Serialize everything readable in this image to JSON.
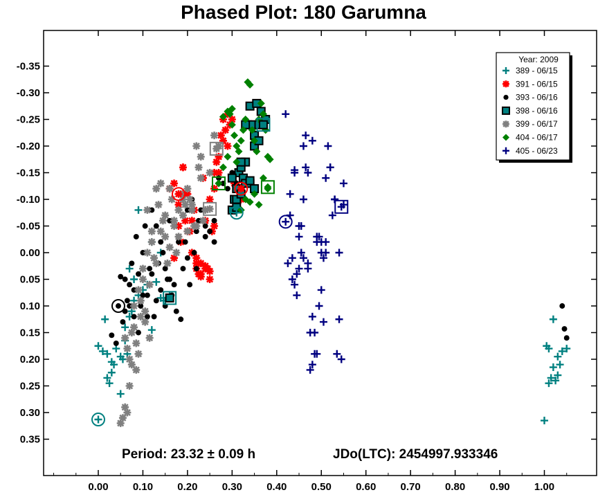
{
  "chart_data": {
    "type": "scatter",
    "title": "Phased Plot: 180 Garumna",
    "xlabel": "",
    "ylabel": "",
    "xlim": [
      -0.12,
      1.12
    ],
    "ylim": [
      0.42,
      -0.42
    ],
    "y_inverted": true,
    "x_ticks": [
      0.0,
      0.1,
      0.2,
      0.3,
      0.4,
      0.5,
      0.6,
      0.7,
      0.8,
      0.9,
      1.0
    ],
    "x_tick_labels": [
      "0.00",
      "0.10",
      "0.20",
      "0.30",
      "0.40",
      "0.50",
      "0.60",
      "0.70",
      "0.80",
      "0.90",
      "1.00"
    ],
    "y_ticks": [
      -0.35,
      -0.3,
      -0.25,
      -0.2,
      -0.15,
      -0.1,
      -0.05,
      0.0,
      0.05,
      0.1,
      0.15,
      0.2,
      0.25,
      0.3,
      0.35
    ],
    "y_tick_labels": [
      "-0.35",
      "-0.30",
      "-0.25",
      "-0.20",
      "-0.15",
      "-0.10",
      "-0.05",
      "0.00",
      "0.05",
      "0.10",
      "0.15",
      "0.20",
      "0.25",
      "0.30",
      "0.35"
    ],
    "grid": false,
    "legend": {
      "title": "Year: 2009",
      "placement": "top-right"
    },
    "annotations": {
      "period": "Period: 23.32 ± 0.09 h",
      "epoch": "JDo(LTC): 2454997.933346"
    },
    "series": [
      {
        "name": "389 - 06/15",
        "marker": "plus",
        "color": "#008080",
        "x": [
          0.0,
          0.01,
          0.02,
          0.02,
          0.03,
          0.035,
          0.04,
          0.05,
          0.055,
          0.06,
          0.06,
          0.065,
          0.07,
          0.075,
          0.08,
          0.08,
          0.09,
          0.1,
          0.11,
          0.12,
          0.13,
          0.14,
          0.15,
          0.16,
          0.015,
          0.025,
          0.03,
          0.05,
          0.07,
          0.09,
          0.12,
          0.14,
          1.0,
          1.01,
          1.02,
          1.03,
          1.04,
          1.005,
          1.015,
          1.025,
          1.035,
          1.05,
          1.02,
          1.03,
          1.01
        ],
        "y": [
          0.175,
          0.185,
          0.19,
          0.235,
          0.205,
          0.21,
          0.18,
          0.265,
          0.2,
          0.165,
          0.14,
          0.19,
          0.12,
          0.11,
          0.09,
          0.05,
          0.08,
          0.07,
          0.06,
          0.145,
          0.055,
          0.085,
          0.09,
          0.08,
          0.125,
          0.245,
          0.225,
          0.195,
          0.03,
          -0.08,
          -0.02,
          0.0,
          0.315,
          0.245,
          0.215,
          0.195,
          0.185,
          0.175,
          0.235,
          0.24,
          0.21,
          0.18,
          0.125,
          0.23,
          0.18
        ]
      },
      {
        "name": "391 - 06/15",
        "marker": "star",
        "color": "#ff0000",
        "x": [
          0.16,
          0.17,
          0.18,
          0.185,
          0.19,
          0.195,
          0.2,
          0.205,
          0.21,
          0.215,
          0.22,
          0.225,
          0.23,
          0.235,
          0.24,
          0.245,
          0.25,
          0.255,
          0.26,
          0.265,
          0.27,
          0.275,
          0.28,
          0.285,
          0.29,
          0.295,
          0.3,
          0.305,
          0.31,
          0.32,
          0.19,
          0.2,
          0.21,
          0.22,
          0.23,
          0.24,
          0.25,
          0.26,
          0.27,
          0.28,
          0.29,
          0.3,
          0.18,
          0.17,
          0.19,
          0.25,
          0.24,
          0.23,
          0.26,
          0.22
        ],
        "y": [
          -0.12,
          -0.13,
          -0.09,
          -0.02,
          -0.16,
          -0.06,
          -0.11,
          -0.04,
          0.0,
          -0.08,
          0.03,
          0.04,
          0.02,
          -0.14,
          -0.06,
          0.03,
          -0.1,
          -0.04,
          -0.15,
          -0.17,
          -0.18,
          -0.22,
          -0.25,
          -0.23,
          -0.26,
          -0.24,
          -0.14,
          -0.13,
          -0.12,
          -0.1,
          -0.16,
          -0.04,
          -0.06,
          0.02,
          0.04,
          0.03,
          0.05,
          -0.12,
          -0.15,
          -0.21,
          -0.2,
          -0.25,
          -0.05,
          0.01,
          -0.11,
          0.035,
          0.025,
          0.045,
          -0.05,
          0.01
        ]
      },
      {
        "name": "393 - 06/16",
        "marker": "circle",
        "color": "#000000",
        "x": [
          0.03,
          0.04,
          0.05,
          0.055,
          0.06,
          0.065,
          0.07,
          0.075,
          0.08,
          0.085,
          0.09,
          0.095,
          0.1,
          0.105,
          0.11,
          0.115,
          0.12,
          0.125,
          0.13,
          0.135,
          0.14,
          0.145,
          0.15,
          0.155,
          0.16,
          0.165,
          0.17,
          0.175,
          0.18,
          0.185,
          0.19,
          0.195,
          0.2,
          0.205,
          0.21,
          0.215,
          0.22,
          0.225,
          0.23,
          0.24,
          0.25,
          0.26,
          0.27,
          0.28,
          0.29,
          0.3,
          0.31,
          0.06,
          0.08,
          0.1,
          0.12,
          0.14,
          0.16,
          0.18,
          0.2,
          0.22,
          0.24,
          0.26,
          0.07,
          0.09,
          0.11,
          0.13,
          0.15,
          1.04,
          1.045,
          1.05
        ],
        "y": [
          0.155,
          0.17,
          0.045,
          0.13,
          0.11,
          0.09,
          0.06,
          0.02,
          0.07,
          -0.03,
          0.04,
          0.1,
          0.0,
          -0.05,
          0.08,
          0.03,
          -0.08,
          0.12,
          -0.05,
          0.02,
          -0.02,
          0.0,
          0.1,
          0.05,
          -0.06,
          0.08,
          0.06,
          0.11,
          -0.03,
          0.125,
          0.03,
          -0.02,
          0.01,
          0.06,
          -0.1,
          0.0,
          -0.04,
          -0.06,
          -0.08,
          -0.03,
          -0.04,
          -0.06,
          -0.14,
          -0.13,
          -0.12,
          -0.15,
          -0.13,
          0.05,
          0.12,
          0.08,
          0.04,
          0.07,
          0.05,
          -0.02,
          -0.08,
          0.03,
          -0.05,
          -0.02,
          0.1,
          0.15,
          0.12,
          0.09,
          0.03,
          0.1,
          0.143,
          0.16
        ]
      },
      {
        "name": "398 - 06/16",
        "marker": "square",
        "color": "#008080",
        "x": [
          0.3,
          0.305,
          0.31,
          0.315,
          0.32,
          0.325,
          0.33,
          0.335,
          0.34,
          0.345,
          0.35,
          0.355,
          0.36,
          0.365,
          0.37,
          0.375,
          0.31,
          0.32,
          0.33,
          0.34,
          0.35,
          0.36,
          0.33,
          0.34,
          0.35,
          0.3,
          0.31,
          0.32
        ],
        "y": [
          -0.08,
          -0.1,
          -0.12,
          -0.15,
          -0.16,
          -0.14,
          -0.17,
          -0.24,
          -0.275,
          -0.24,
          -0.22,
          -0.28,
          -0.24,
          -0.265,
          -0.24,
          -0.25,
          -0.1,
          -0.11,
          -0.13,
          -0.13,
          -0.2,
          -0.21,
          -0.24,
          -0.135,
          -0.12,
          -0.14,
          -0.085,
          -0.17
        ]
      },
      {
        "name": "399 - 06/17",
        "marker": "star",
        "color": "#808080",
        "x": [
          0.05,
          0.055,
          0.06,
          0.065,
          0.07,
          0.075,
          0.08,
          0.085,
          0.09,
          0.095,
          0.1,
          0.105,
          0.11,
          0.115,
          0.12,
          0.125,
          0.13,
          0.135,
          0.14,
          0.145,
          0.15,
          0.155,
          0.16,
          0.165,
          0.17,
          0.175,
          0.18,
          0.185,
          0.19,
          0.195,
          0.2,
          0.205,
          0.21,
          0.215,
          0.22,
          0.225,
          0.23,
          0.235,
          0.24,
          0.25,
          0.26,
          0.27,
          0.06,
          0.07,
          0.08,
          0.09,
          0.1,
          0.11,
          0.12,
          0.13,
          0.14,
          0.15,
          0.16,
          0.17,
          0.18,
          0.19,
          0.2,
          0.21,
          0.22,
          0.23,
          0.065,
          0.075,
          0.085,
          0.095,
          0.105,
          0.115
        ],
        "y": [
          0.32,
          0.31,
          0.29,
          0.3,
          0.25,
          0.21,
          0.14,
          0.17,
          0.19,
          0.12,
          0.05,
          0.11,
          -0.08,
          0.06,
          -0.04,
          0.01,
          -0.12,
          -0.09,
          -0.13,
          -0.06,
          -0.03,
          0.02,
          -0.12,
          -0.1,
          -0.05,
          0.0,
          -0.08,
          -0.11,
          -0.07,
          -0.09,
          -0.04,
          -0.1,
          -0.09,
          -0.05,
          -0.2,
          -0.16,
          -0.14,
          -0.06,
          -0.08,
          -0.15,
          -0.22,
          -0.2,
          0.16,
          0.2,
          0.1,
          0.07,
          0.03,
          0.0,
          -0.02,
          0.02,
          -0.04,
          -0.07,
          -0.01,
          -0.06,
          -0.03,
          -0.1,
          -0.12,
          -0.08,
          -0.05,
          -0.18,
          0.18,
          0.15,
          0.22,
          0.09,
          0.13,
          0.16
        ]
      },
      {
        "name": "404 - 06/17",
        "marker": "diamond",
        "color": "#008000",
        "x": [
          0.27,
          0.28,
          0.29,
          0.295,
          0.3,
          0.305,
          0.31,
          0.315,
          0.32,
          0.325,
          0.33,
          0.335,
          0.34,
          0.345,
          0.35,
          0.355,
          0.36,
          0.365,
          0.37,
          0.375,
          0.38,
          0.385,
          0.31,
          0.32,
          0.33,
          0.34,
          0.35,
          0.36,
          0.37,
          0.38,
          0.3,
          0.29,
          0.28
        ],
        "y": [
          -0.13,
          -0.16,
          -0.18,
          -0.26,
          -0.24,
          -0.22,
          -0.2,
          -0.19,
          -0.21,
          -0.23,
          -0.25,
          -0.32,
          -0.315,
          -0.23,
          -0.21,
          -0.19,
          -0.25,
          -0.28,
          -0.26,
          -0.23,
          -0.18,
          -0.175,
          -0.17,
          -0.08,
          -0.1,
          -0.095,
          -0.11,
          -0.09,
          -0.14,
          -0.12,
          -0.27,
          -0.265,
          -0.255
        ]
      },
      {
        "name": "405 - 06/23",
        "marker": "plus",
        "color": "#000080",
        "x": [
          0.42,
          0.425,
          0.43,
          0.435,
          0.44,
          0.445,
          0.45,
          0.455,
          0.46,
          0.465,
          0.47,
          0.475,
          0.48,
          0.485,
          0.49,
          0.495,
          0.5,
          0.505,
          0.51,
          0.515,
          0.52,
          0.525,
          0.53,
          0.535,
          0.54,
          0.545,
          0.55,
          0.43,
          0.44,
          0.45,
          0.46,
          0.47,
          0.48,
          0.49,
          0.5,
          0.51,
          0.52,
          0.53,
          0.54,
          0.55,
          0.44,
          0.45,
          0.46,
          0.47,
          0.48,
          0.49,
          0.5,
          0.51,
          0.435,
          0.445,
          0.455,
          0.465,
          0.475,
          0.485,
          0.495,
          0.505
        ],
        "y": [
          -0.26,
          0.02,
          -0.07,
          0.05,
          -0.15,
          0.08,
          -0.05,
          0.0,
          -0.2,
          -0.22,
          0.02,
          0.15,
          -0.21,
          0.19,
          -0.03,
          0.1,
          -0.02,
          0.13,
          -0.14,
          -0.2,
          -0.16,
          -0.07,
          -0.1,
          0.19,
          0.125,
          0.2,
          -0.09,
          -0.11,
          0.06,
          -0.03,
          -0.1,
          -0.15,
          0.21,
          -0.02,
          0.0,
          0.0,
          -0.16,
          -0.1,
          0.0,
          -0.13,
          -0.155,
          0.03,
          0.01,
          0.03,
          0.12,
          0.19,
          0.07,
          -0.02,
          0.01,
          0.04,
          -0.05,
          -0.16,
          0.22,
          0.15,
          -0.03,
          0.01
        ]
      }
    ],
    "highlighted_points": [
      {
        "series": "389 - 06/15",
        "x": 0.0,
        "y": 0.313
      },
      {
        "series": "389 - 06/15",
        "x": 0.31,
        "y": -0.075
      },
      {
        "series": "391 - 06/15",
        "x": 0.18,
        "y": -0.11
      },
      {
        "series": "391 - 06/15",
        "x": 0.32,
        "y": -0.12
      },
      {
        "series": "393 - 06/16",
        "x": 0.045,
        "y": 0.1
      },
      {
        "series": "398 - 06/16",
        "x": 0.37,
        "y": -0.24
      },
      {
        "series": "398 - 06/16",
        "x": 0.16,
        "y": 0.085
      },
      {
        "series": "399 - 06/17",
        "x": 0.25,
        "y": -0.082
      },
      {
        "series": "399 - 06/17",
        "x": 0.265,
        "y": -0.195
      },
      {
        "series": "404 - 06/17",
        "x": 0.27,
        "y": -0.13
      },
      {
        "series": "404 - 06/17",
        "x": 0.38,
        "y": -0.123
      },
      {
        "series": "405 - 06/23",
        "x": 0.42,
        "y": -0.058
      },
      {
        "series": "405 - 06/23",
        "x": 0.545,
        "y": -0.086
      }
    ]
  }
}
